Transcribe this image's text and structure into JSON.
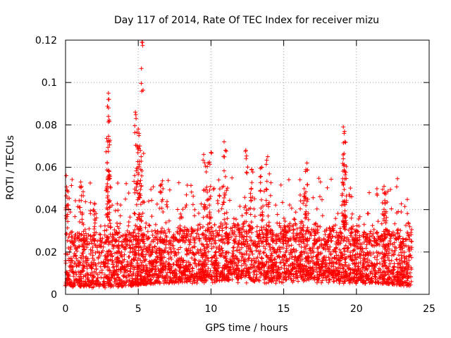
{
  "chart_data": {
    "type": "scatter",
    "title": "Day 117 of 2014, Rate Of TEC Index for receiver mizu",
    "xlabel": "GPS time / hours",
    "ylabel": "ROTI / TECUs",
    "xlim": [
      0,
      25
    ],
    "ylim": [
      0,
      0.12
    ],
    "xticks": [
      0,
      5,
      10,
      15,
      20,
      25
    ],
    "xtick_labels": [
      "0",
      "5",
      "10",
      "15",
      "20",
      "25"
    ],
    "yticks": [
      0,
      0.02,
      0.04,
      0.06,
      0.08,
      0.1,
      0.12
    ],
    "ytick_labels": [
      "0",
      "0.02",
      "0.04",
      "0.06",
      "0.08",
      "0.1",
      "0.12"
    ],
    "grid": true,
    "marker": "+",
    "series": [
      {
        "name": "ROTI",
        "color": "#ff0000",
        "x_range": [
          0,
          23.8
        ],
        "bulk_range": [
          0.005,
          0.03
        ],
        "spikes": [
          {
            "x": 0.05,
            "y": 0.056
          },
          {
            "x": 0.1,
            "y": 0.049
          },
          {
            "x": 1.1,
            "y": 0.051
          },
          {
            "x": 2.0,
            "y": 0.043
          },
          {
            "x": 2.95,
            "y": 0.095
          },
          {
            "x": 2.95,
            "y": 0.092
          },
          {
            "x": 2.95,
            "y": 0.088
          },
          {
            "x": 2.95,
            "y": 0.084
          },
          {
            "x": 2.9,
            "y": 0.072
          },
          {
            "x": 3.0,
            "y": 0.058
          },
          {
            "x": 4.8,
            "y": 0.086
          },
          {
            "x": 4.85,
            "y": 0.083
          },
          {
            "x": 5.0,
            "y": 0.078
          },
          {
            "x": 5.05,
            "y": 0.075
          },
          {
            "x": 5.1,
            "y": 0.07
          },
          {
            "x": 5.2,
            "y": 0.065
          },
          {
            "x": 5.25,
            "y": 0.119
          },
          {
            "x": 6.6,
            "y": 0.052
          },
          {
            "x": 9.5,
            "y": 0.066
          },
          {
            "x": 9.8,
            "y": 0.062
          },
          {
            "x": 10.0,
            "y": 0.067
          },
          {
            "x": 10.9,
            "y": 0.072
          },
          {
            "x": 11.0,
            "y": 0.068
          },
          {
            "x": 12.4,
            "y": 0.068
          },
          {
            "x": 12.8,
            "y": 0.059
          },
          {
            "x": 13.5,
            "y": 0.06
          },
          {
            "x": 13.9,
            "y": 0.065
          },
          {
            "x": 16.6,
            "y": 0.062
          },
          {
            "x": 16.5,
            "y": 0.058
          },
          {
            "x": 19.1,
            "y": 0.079
          },
          {
            "x": 19.15,
            "y": 0.076
          },
          {
            "x": 19.2,
            "y": 0.072
          },
          {
            "x": 19.1,
            "y": 0.064
          },
          {
            "x": 19.2,
            "y": 0.058
          },
          {
            "x": 21.9,
            "y": 0.051
          },
          {
            "x": 22.0,
            "y": 0.048
          }
        ]
      }
    ]
  }
}
